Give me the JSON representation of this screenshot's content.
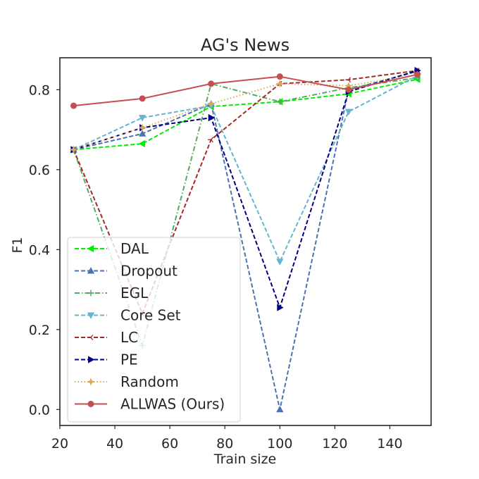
{
  "chart_data": {
    "type": "line",
    "title": "AG's News",
    "xlabel": "Train size",
    "ylabel": "F1",
    "xlim": [
      20,
      155
    ],
    "ylim": [
      -0.04,
      0.88
    ],
    "xticks": [
      20,
      40,
      60,
      80,
      100,
      120,
      140
    ],
    "yticks": [
      0.0,
      0.2,
      0.4,
      0.6,
      0.8
    ],
    "xtick_labels": [
      "20",
      "40",
      "60",
      "80",
      "100",
      "120",
      "140"
    ],
    "ytick_labels": [
      "0.0",
      "0.2",
      "0.4",
      "0.6",
      "0.8"
    ],
    "grid": false,
    "legend_position": "lower-left",
    "x": [
      25,
      50,
      75,
      100,
      125,
      150
    ],
    "series": [
      {
        "name": "DAL",
        "values": [
          0.65,
          0.665,
          0.758,
          0.77,
          0.79,
          0.826
        ],
        "color": "#00ee00",
        "dash": "dashed",
        "marker": "triangle-left"
      },
      {
        "name": "Dropout",
        "values": [
          0.65,
          0.69,
          0.765,
          0.0,
          0.8,
          0.846
        ],
        "color": "#4c72b0",
        "dash": "dashed",
        "marker": "triangle-up"
      },
      {
        "name": "EGL",
        "values": [
          0.65,
          0.16,
          0.815,
          0.77,
          0.805,
          0.83
        ],
        "color": "#55a868",
        "dash": "dashdot",
        "marker": "plus"
      },
      {
        "name": "Core Set",
        "values": [
          0.65,
          0.73,
          0.76,
          0.37,
          0.745,
          0.835
        ],
        "color": "#64b5cd",
        "dash": "dashed",
        "marker": "triangle-down"
      },
      {
        "name": "LC",
        "values": [
          0.65,
          0.24,
          0.675,
          0.815,
          0.825,
          0.848
        ],
        "color": "#a52a2a",
        "dash": "dashed",
        "marker": "tri-left"
      },
      {
        "name": "PE",
        "values": [
          0.65,
          0.705,
          0.73,
          0.255,
          0.795,
          0.848
        ],
        "color": "#000080",
        "dash": "dashed",
        "marker": "triangle-right"
      },
      {
        "name": "Random",
        "values": [
          0.65,
          0.705,
          0.765,
          0.815,
          0.81,
          0.838
        ],
        "color": "#d9a95b",
        "dash": "dotted",
        "marker": "star"
      },
      {
        "name": "ALLWAS (Ours)",
        "values": [
          0.76,
          0.778,
          0.815,
          0.833,
          0.8,
          0.838
        ],
        "color": "#c44e52",
        "dash": "solid",
        "marker": "circle"
      }
    ]
  }
}
